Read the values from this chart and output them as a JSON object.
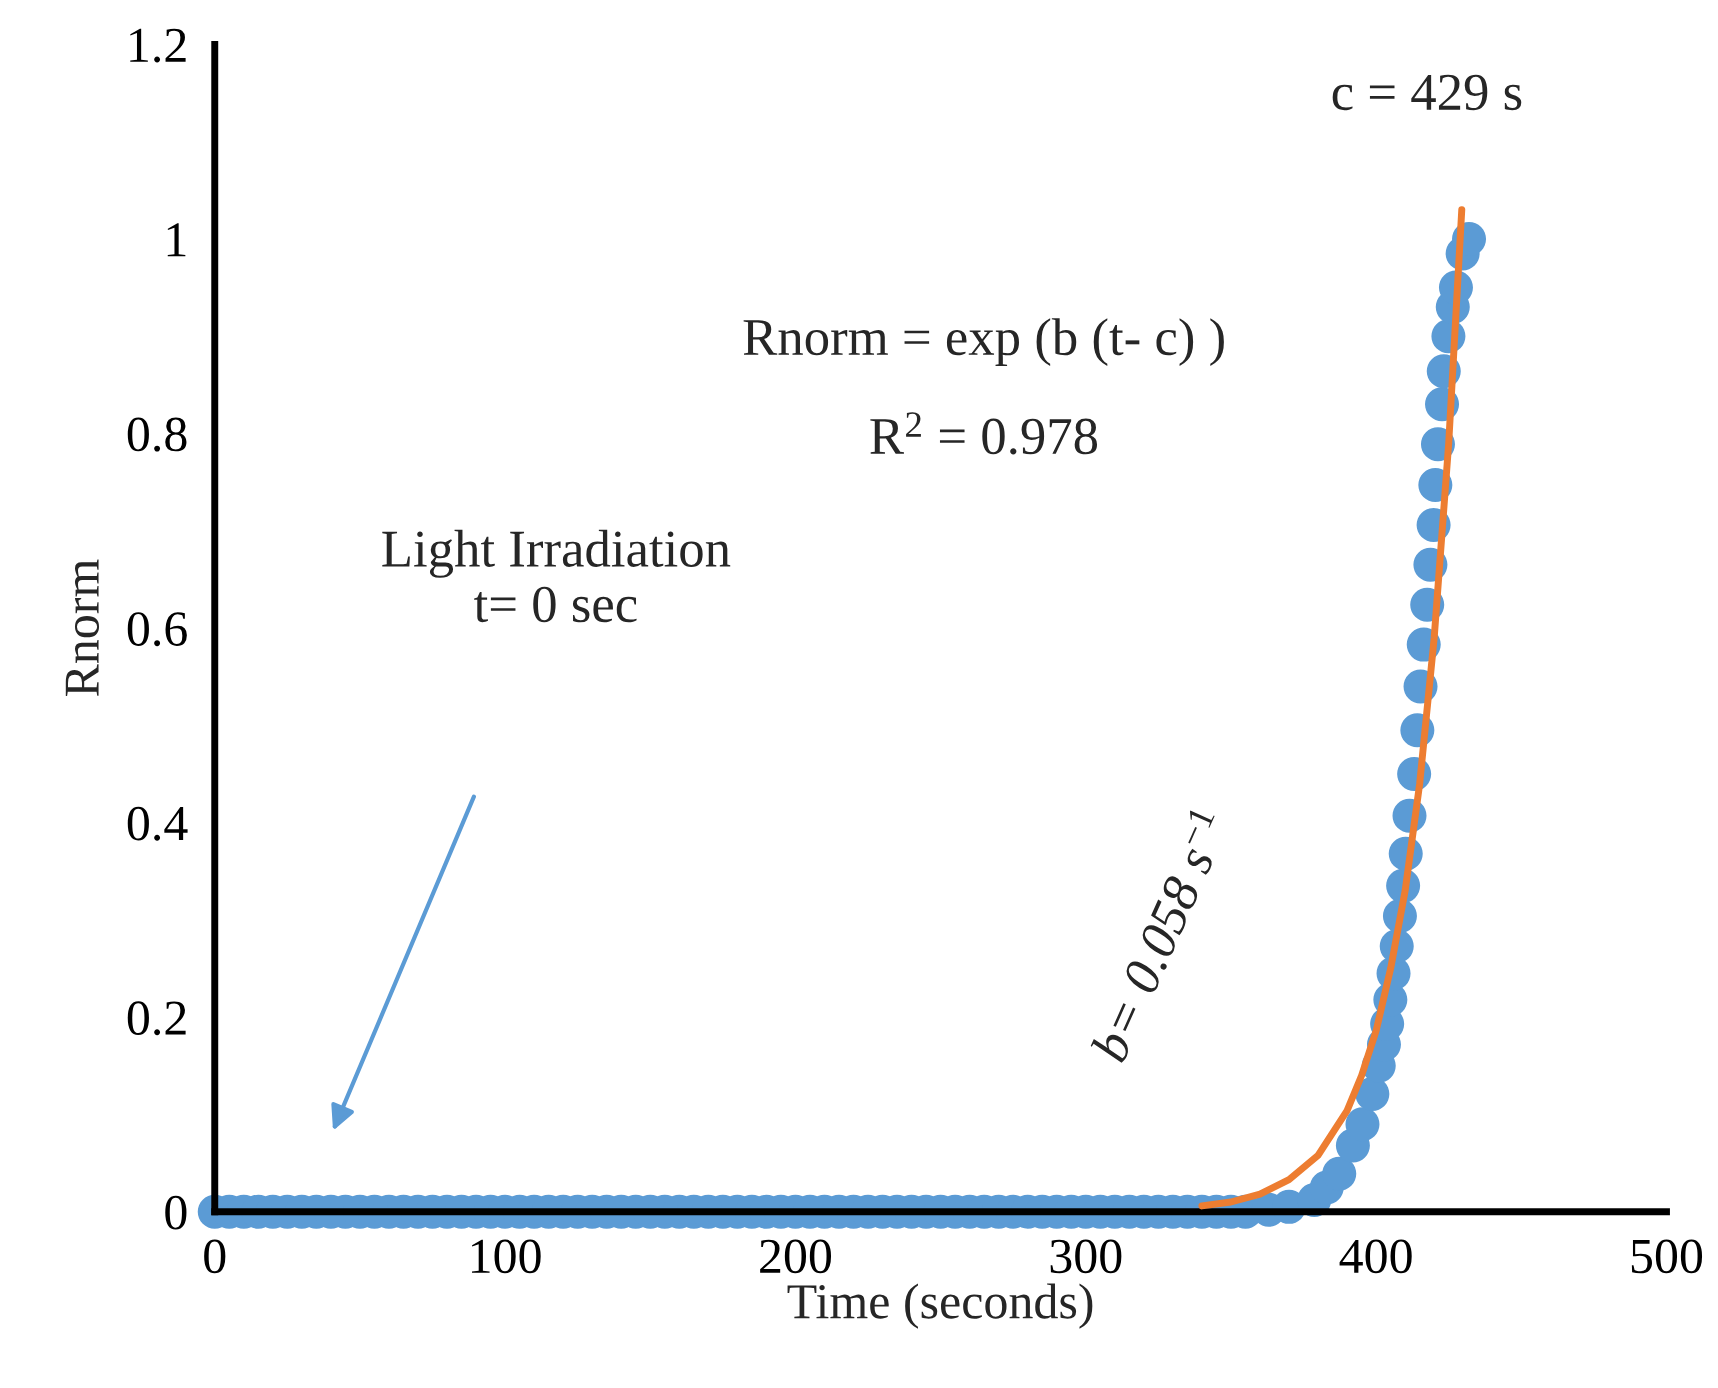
{
  "chart_data": {
    "type": "scatter",
    "xlabel": "Time (seconds)",
    "ylabel": "Rnorm",
    "xlim": [
      0,
      500
    ],
    "xticks": [
      0,
      100,
      200,
      300,
      400,
      500
    ],
    "ylim": [
      0,
      1.2
    ],
    "yticks": [
      0,
      0.2,
      0.4,
      0.6,
      0.8,
      1,
      1.2
    ],
    "grid": false,
    "annotations": [
      "c = 429 s",
      "Rnorm = exp (b (t- c) )",
      "R$^{2}$ = 0.978",
      "Light Irradiation\nt= 0 sec",
      "b= 0.058 s$^{−1}$"
    ],
    "series": [
      {
        "marker": "circle",
        "color": "#5b9bd5",
        "x": [
          0,
          5,
          10,
          15,
          20,
          25,
          30,
          35,
          40,
          45,
          50,
          55,
          60,
          65,
          70,
          75,
          80,
          85,
          90,
          95,
          100,
          105,
          110,
          115,
          120,
          125,
          130,
          135,
          140,
          145,
          150,
          155,
          160,
          165,
          170,
          175,
          180,
          185,
          190,
          195,
          200,
          205,
          210,
          215,
          220,
          225,
          230,
          235,
          240,
          245,
          250,
          255,
          260,
          265,
          270,
          275,
          280,
          285,
          290,
          295,
          300,
          305,
          310,
          315,
          320,
          325,
          330,
          335,
          340,
          345,
          350,
          355,
          363,
          370,
          378.7,
          383,
          387.3,
          392,
          395.3,
          398.7,
          400.9,
          402.7,
          403.8,
          404.9,
          406,
          407.1,
          408.2,
          409.3,
          410.2,
          411.5,
          413.1,
          414.2,
          415.3,
          416.4,
          417.6,
          418.7,
          419.8,
          420.4,
          421.3,
          422.7,
          423.3,
          424.9,
          426.4,
          427.5,
          429.8,
          432
        ],
        "values": [
          0,
          0,
          0,
          0,
          0,
          0,
          0,
          0,
          0,
          0,
          0,
          0,
          0,
          0,
          0,
          0,
          0,
          0,
          0,
          0,
          0,
          0,
          0,
          0,
          0,
          0,
          0,
          0,
          0,
          0,
          0,
          0,
          0,
          0,
          0,
          0,
          0,
          0,
          0,
          0,
          0,
          0,
          0,
          0,
          0,
          0,
          0,
          0,
          0,
          0,
          0,
          0,
          0,
          0,
          0,
          0,
          0,
          0,
          0,
          0,
          0,
          0,
          0,
          0,
          0,
          0,
          0,
          0,
          0,
          0,
          0,
          0,
          0.002,
          0.005,
          0.012,
          0.025,
          0.039,
          0.068,
          0.09,
          0.121,
          0.15,
          0.172,
          0.193,
          0.218,
          0.245,
          0.273,
          0.304,
          0.335,
          0.368,
          0.407,
          0.45,
          0.495,
          0.54,
          0.583,
          0.624,
          0.665,
          0.706,
          0.747,
          0.789,
          0.83,
          0.864,
          0.9,
          0.93,
          0.95,
          0.985,
          1.0
        ]
      },
      {
        "type": "line",
        "marker": "none",
        "color": "#ed7d31",
        "x": [
          340,
          350,
          360,
          370,
          380,
          390,
          395,
          400,
          405,
          410,
          415,
          420,
          425,
          429.5
        ],
        "values": [
          0.006,
          0.01,
          0.018,
          0.033,
          0.058,
          0.104,
          0.14,
          0.186,
          0.25,
          0.33,
          0.44,
          0.59,
          0.79,
          1.03
        ]
      }
    ]
  }
}
